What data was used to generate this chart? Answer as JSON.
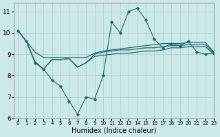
{
  "xlabel": "Humidex (Indice chaleur)",
  "bg_color": "#cce8e8",
  "grid_color": "#aacccc",
  "line_color": "#1a6b6b",
  "xlim": [
    -0.5,
    23
  ],
  "ylim": [
    6,
    11.4
  ],
  "xticks": [
    0,
    1,
    2,
    3,
    4,
    5,
    6,
    7,
    8,
    9,
    10,
    11,
    12,
    13,
    14,
    15,
    16,
    17,
    18,
    19,
    20,
    21,
    22,
    23
  ],
  "yticks": [
    6,
    7,
    8,
    9,
    10,
    11
  ],
  "series_main": [
    10.1,
    9.6,
    8.6,
    8.3,
    7.8,
    7.5,
    6.8,
    6.2,
    7.0,
    6.9,
    8.0,
    10.5,
    10.0,
    11.0,
    11.15,
    10.6,
    9.7,
    9.3,
    9.5,
    9.4,
    9.6,
    9.1,
    9.0,
    9.05
  ],
  "series_top": [
    10.1,
    9.6,
    9.1,
    8.85,
    8.85,
    8.85,
    8.85,
    8.85,
    8.85,
    9.05,
    9.15,
    9.2,
    9.25,
    9.3,
    9.35,
    9.4,
    9.45,
    9.5,
    9.5,
    9.5,
    9.55,
    9.55,
    9.55,
    9.1
  ],
  "series_mid": [
    10.1,
    9.6,
    8.65,
    8.3,
    8.75,
    8.75,
    8.8,
    8.4,
    8.6,
    9.0,
    9.1,
    9.15,
    9.2,
    9.2,
    9.25,
    9.3,
    9.3,
    9.35,
    9.4,
    9.4,
    9.45,
    9.45,
    9.45,
    9.05
  ],
  "series_bot": [
    10.1,
    9.6,
    8.65,
    8.3,
    8.75,
    8.75,
    8.8,
    8.4,
    8.6,
    8.9,
    8.95,
    9.0,
    9.05,
    9.05,
    9.1,
    9.15,
    9.15,
    9.2,
    9.3,
    9.3,
    9.35,
    9.35,
    9.35,
    9.0
  ]
}
